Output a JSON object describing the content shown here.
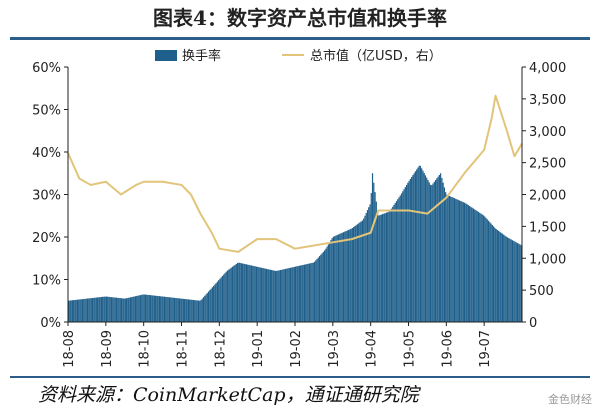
{
  "page": {
    "title": "图表4：数字资产总市值和换手率",
    "source": "资料来源：CoinMarketCap，通证通研究院",
    "watermark": "金色财经"
  },
  "chart_data": {
    "type": "bar+line",
    "title": "图表4：数字资产总市值和换手率",
    "legend": {
      "placement": "top",
      "entries": [
        {
          "name": "换手率",
          "color": "#1f5f8b"
        },
        {
          "name": "总市值（亿USD，右）",
          "color": "#e2c47a"
        }
      ]
    },
    "x_ticks": [
      "18-08",
      "18-09",
      "18-10",
      "18-11",
      "18-12",
      "19-01",
      "19-02",
      "19-03",
      "19-04",
      "19-05",
      "19-06",
      "19-07"
    ],
    "y_left": {
      "min": 0,
      "max": 60,
      "ticks": [
        "0%",
        "10%",
        "20%",
        "30%",
        "40%",
        "50%",
        "60%"
      ]
    },
    "y_right": {
      "min": 0,
      "max": 4000,
      "ticks": [
        "0",
        "500",
        "1,000",
        "1,500",
        "2,000",
        "2,500",
        "3,000",
        "3,500",
        "4,000"
      ]
    },
    "grid": false,
    "series": [
      {
        "name": "换手率",
        "type": "bar",
        "axis": "left",
        "unit": "%",
        "points": [
          [
            0,
            5
          ],
          [
            0.5,
            5.5
          ],
          [
            1,
            6
          ],
          [
            1.5,
            5.5
          ],
          [
            2,
            6.5
          ],
          [
            2.5,
            6
          ],
          [
            3,
            5.5
          ],
          [
            3.5,
            5
          ],
          [
            3.8,
            8
          ],
          [
            4.2,
            12
          ],
          [
            4.5,
            14
          ],
          [
            5,
            13
          ],
          [
            5.5,
            12
          ],
          [
            6,
            13
          ],
          [
            6.5,
            14
          ],
          [
            6.8,
            17
          ],
          [
            7,
            20
          ],
          [
            7.5,
            22
          ],
          [
            7.8,
            24
          ],
          [
            8.0,
            28
          ],
          [
            8.05,
            35
          ],
          [
            8.2,
            25
          ],
          [
            8.5,
            26
          ],
          [
            8.8,
            30
          ],
          [
            9,
            33
          ],
          [
            9.3,
            37
          ],
          [
            9.6,
            32
          ],
          [
            9.85,
            35
          ],
          [
            10,
            30
          ],
          [
            10.5,
            28
          ],
          [
            11,
            25
          ],
          [
            11.3,
            22
          ],
          [
            11.6,
            20
          ],
          [
            12,
            18
          ]
        ]
      },
      {
        "name": "总市值（亿USD，右）",
        "type": "line",
        "axis": "right",
        "unit": "亿USD",
        "points": [
          [
            0,
            2650
          ],
          [
            0.3,
            2250
          ],
          [
            0.6,
            2150
          ],
          [
            1,
            2200
          ],
          [
            1.4,
            2000
          ],
          [
            1.8,
            2150
          ],
          [
            2,
            2200
          ],
          [
            2.5,
            2200
          ],
          [
            3,
            2150
          ],
          [
            3.25,
            2000
          ],
          [
            3.5,
            1700
          ],
          [
            3.8,
            1400
          ],
          [
            4,
            1150
          ],
          [
            4.5,
            1100
          ],
          [
            5,
            1300
          ],
          [
            5.5,
            1300
          ],
          [
            6,
            1150
          ],
          [
            6.5,
            1200
          ],
          [
            7,
            1250
          ],
          [
            7.5,
            1300
          ],
          [
            8,
            1400
          ],
          [
            8.2,
            1750
          ],
          [
            8.5,
            1750
          ],
          [
            9,
            1750
          ],
          [
            9.5,
            1700
          ],
          [
            10,
            1950
          ],
          [
            10.5,
            2350
          ],
          [
            11,
            2700
          ],
          [
            11.2,
            3200
          ],
          [
            11.3,
            3550
          ],
          [
            11.6,
            3000
          ],
          [
            11.8,
            2600
          ],
          [
            12,
            2800
          ]
        ]
      }
    ]
  }
}
